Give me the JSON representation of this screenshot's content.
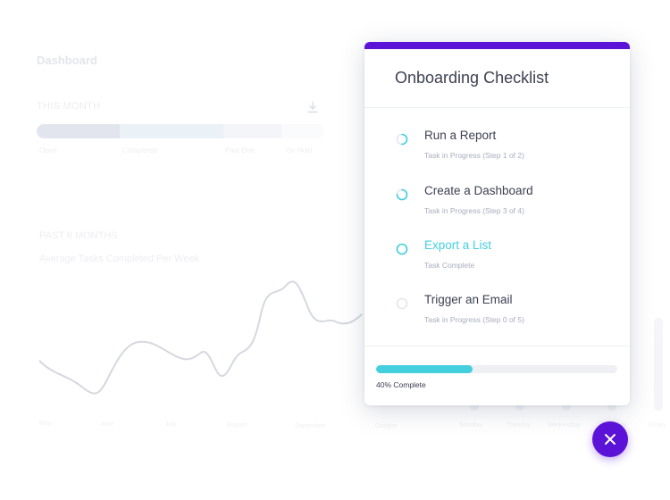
{
  "dashboard": {
    "title": "Dashboard",
    "this_month_label": "THIS MONTH",
    "status_segments": [
      {
        "label": "Open",
        "color": "#9aa6bf",
        "fraction": 0.29
      },
      {
        "label": "Completed",
        "color": "#b9d3e4",
        "fraction": 0.36
      },
      {
        "label": "Past Due",
        "color": "#d5dce8",
        "fraction": 0.2
      },
      {
        "label": "On Hold",
        "color": "#eef1f6",
        "fraction": 0.15
      }
    ],
    "past_label": "PAST 6 MONTHS",
    "chart_title": "Average Tasks Completed Per Week",
    "months": [
      "May",
      "June",
      "July",
      "August",
      "September",
      "October"
    ],
    "days": [
      "Monday",
      "Tuesday",
      "Wednesday",
      "Thursday",
      "Friday"
    ]
  },
  "checklist": {
    "title": "Onboarding Checklist",
    "accent_color": "#5b13d8",
    "done_color": "#43cfde",
    "tasks": [
      {
        "name": "Run a Report",
        "status": "Task in Progress (Step 1 of 2)",
        "state": "in-progress",
        "progress": 0.5
      },
      {
        "name": "Create a Dashboard",
        "status": "Task in Progress (Step 3 of 4)",
        "state": "in-progress",
        "progress": 0.75
      },
      {
        "name": "Export a List",
        "status": "Task Complete",
        "state": "complete",
        "progress": 1.0
      },
      {
        "name": "Trigger an Email",
        "status": "Task in Progress (Step 0 of 5)",
        "state": "not-started",
        "progress": 0.0
      }
    ],
    "progress_percent": 40,
    "progress_label": "40% Complete"
  },
  "close_button": {
    "icon": "close-icon"
  }
}
